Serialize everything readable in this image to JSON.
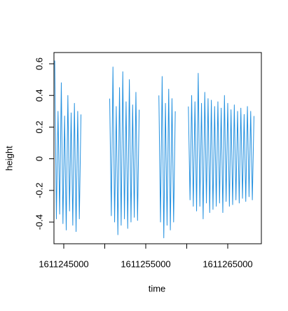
{
  "chart_data": {
    "type": "line",
    "x_label": "time",
    "y_label": "height",
    "x": [
      1611243900,
      1611244100,
      1611244300,
      1611244500,
      1611244700,
      1611244900,
      1611245100,
      1611245300,
      1611245500,
      1611245700,
      1611245900,
      1611246100,
      1611246300,
      1611246500,
      1611246700,
      1611246900,
      1611247100,
      1611248800,
      1611250600,
      1611250800,
      1611251000,
      1611251200,
      1611251400,
      1611251600,
      1611251800,
      1611252000,
      1611252200,
      1611252400,
      1611252600,
      1611252800,
      1611253000,
      1611253200,
      1611253400,
      1611253600,
      1611253800,
      1611254000,
      1611254200,
      1611255400,
      1611256600,
      1611256800,
      1611257000,
      1611257200,
      1611257400,
      1611257600,
      1611257800,
      1611258000,
      1611258200,
      1611258400,
      1611258600,
      1611259400,
      1611260200,
      1611260400,
      1611260600,
      1611260800,
      1611261000,
      1611261200,
      1611261400,
      1611261600,
      1611261800,
      1611262000,
      1611262200,
      1611262400,
      1611262600,
      1611262800,
      1611263000,
      1611263200,
      1611263400,
      1611263600,
      1611263800,
      1611264000,
      1611264200,
      1611264400,
      1611264600,
      1611264800,
      1611265000,
      1611265200,
      1611265400,
      1611265600,
      1611265800,
      1611266000,
      1611266200,
      1611266400,
      1611266600,
      1611266800,
      1611267000,
      1611267200,
      1611267400,
      1611267600,
      1611267800,
      1611268000,
      1611268200
    ],
    "series": [
      {
        "color": "#2491e0",
        "values": [
          0.62,
          -0.38,
          0.3,
          -0.35,
          0.48,
          -0.41,
          0.27,
          -0.45,
          0.4,
          -0.33,
          0.29,
          -0.42,
          0.35,
          -0.46,
          0.3,
          -0.38,
          0.28,
          null,
          0.38,
          -0.36,
          0.58,
          -0.4,
          0.33,
          -0.48,
          0.45,
          -0.42,
          0.55,
          -0.38,
          0.36,
          -0.44,
          0.5,
          -0.4,
          0.34,
          -0.37,
          0.42,
          -0.39,
          0.31,
          null,
          0.4,
          -0.4,
          0.52,
          -0.5,
          0.35,
          -0.42,
          0.44,
          -0.45,
          0.38,
          -0.4,
          0.3,
          null,
          0.33,
          -0.26,
          0.4,
          -0.3,
          0.36,
          -0.33,
          0.54,
          -0.3,
          0.35,
          -0.38,
          0.42,
          -0.28,
          0.38,
          -0.34,
          0.37,
          -0.32,
          0.33,
          -0.3,
          0.36,
          -0.28,
          0.32,
          -0.34,
          0.4,
          -0.27,
          0.35,
          -0.3,
          0.31,
          -0.29,
          0.34,
          -0.26,
          0.3,
          -0.28,
          0.32,
          -0.25,
          0.28,
          -0.27,
          0.33,
          -0.24,
          0.3,
          -0.26,
          0.27
        ]
      }
    ],
    "xlim": [
      1611243803,
      1611269103
    ],
    "xticks": [
      1611245000,
      1611255000,
      1611265000
    ],
    "x_minor_ticks": [
      1611250000,
      1611260000
    ],
    "ylim": [
      -0.537,
      0.671
    ],
    "yticks": [
      -0.4,
      -0.2,
      0,
      0.2,
      0.4,
      0.6
    ],
    "grid": false
  }
}
